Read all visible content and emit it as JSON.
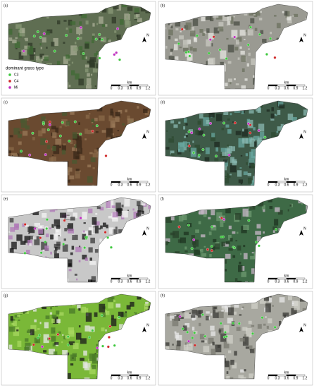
{
  "panels": [
    {
      "label": "(a)"
    },
    {
      "label": "(b)"
    },
    {
      "label": "(c)"
    },
    {
      "label": "(d)"
    },
    {
      "label": "(e)"
    },
    {
      "label": "(f)"
    },
    {
      "label": "(g)"
    },
    {
      "label": "(h)"
    }
  ],
  "legend": {
    "title": "dominant grass type",
    "items": [
      "C3",
      "C4",
      "Mi"
    ]
  },
  "scale_bar": {
    "unit": "km",
    "ticks": [
      0,
      0.3,
      0.6,
      0.9,
      1.2
    ]
  },
  "north": "N"
}
